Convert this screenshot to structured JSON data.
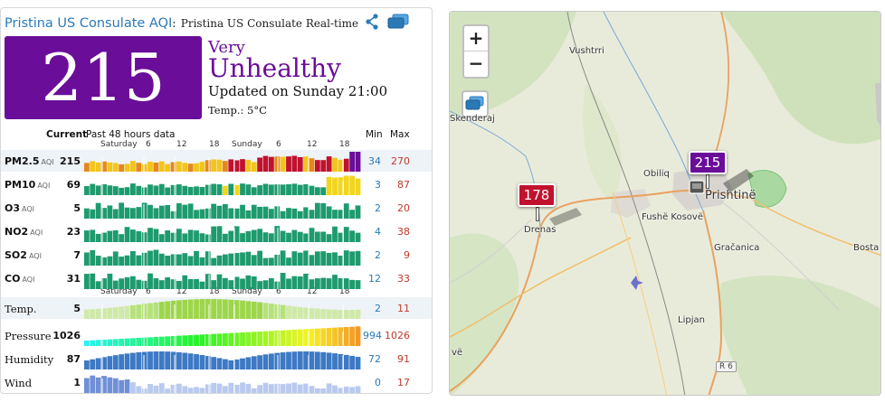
{
  "panel": {
    "station_link": "Pristina US Consulate AQI",
    "separator": ":",
    "station_sub": "Pristina US Consulate Real-time",
    "aqi_value": "215",
    "level_line1": "Very",
    "level_line2": "Unhealthy",
    "updated": "Updated on Sunday 21:00",
    "temp": "Temp.: 5°C",
    "colors": {
      "aqi_bg": "#6a0d99",
      "min": "#2a7ab8",
      "max": "#c0392b"
    },
    "icons": [
      "share-icon",
      "maps-icon"
    ]
  },
  "table": {
    "h_current": "Current",
    "h_past": "Past 48 hours data",
    "h_min": "Min",
    "h_max": "Max",
    "tick_labels": [
      "Saturday",
      "6",
      "12",
      "18",
      "Sunday",
      "6",
      "12",
      "18"
    ],
    "rows": [
      {
        "label": "PM2.5",
        "aqi": "AQI",
        "current": "215",
        "min": "34",
        "max": "270"
      },
      {
        "label": "PM10",
        "aqi": "AQI",
        "current": "69",
        "min": "3",
        "max": "87"
      },
      {
        "label": "O3",
        "aqi": "AQI",
        "current": "5",
        "min": "2",
        "max": "20"
      },
      {
        "label": "NO2",
        "aqi": "AQI",
        "current": "23",
        "min": "4",
        "max": "38"
      },
      {
        "label": "SO2",
        "aqi": "AQI",
        "current": "7",
        "min": "2",
        "max": "9"
      },
      {
        "label": "CO",
        "aqi": "AQI",
        "current": "31",
        "min": "12",
        "max": "33"
      },
      {
        "label": "Temp.",
        "aqi": "",
        "current": "5",
        "min": "2",
        "max": "11"
      },
      {
        "label": "Pressure",
        "aqi": "",
        "current": "1026",
        "min": "994",
        "max": "1026"
      },
      {
        "label": "Humidity",
        "aqi": "",
        "current": "87",
        "min": "72",
        "max": "91"
      },
      {
        "label": "Wind",
        "aqi": "",
        "current": "1",
        "min": "0",
        "max": "17"
      }
    ]
  },
  "map": {
    "zoom_in": "+",
    "zoom_out": "−",
    "places": [
      "Vushtrri",
      "Obiliq",
      "Prishtinë",
      "Fushë Kosovë",
      "Drenas",
      "Gračanica",
      "Lipjan",
      "Skenderaj",
      "Bosta",
      "vë"
    ],
    "road_shield": "R 6",
    "markers": [
      {
        "value": "215",
        "color": "#6a0d99"
      },
      {
        "value": "178",
        "color": "#c0122f"
      }
    ]
  }
}
